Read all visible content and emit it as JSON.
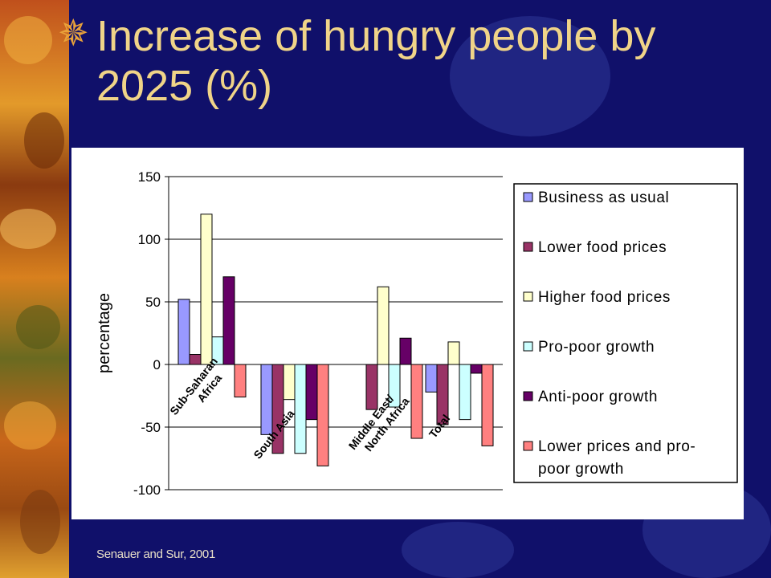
{
  "slide": {
    "title": "Increase of hungry people by 2025 (%)",
    "source": "Senauer and Sur, 2001"
  },
  "chart_data": {
    "type": "bar",
    "title": "",
    "xlabel": "",
    "ylabel": "percentage",
    "ylim": [
      -100,
      150
    ],
    "yticks": [
      150,
      100,
      50,
      0,
      -50,
      -100
    ],
    "grid": true,
    "legend": "right",
    "categories": [
      "Sub-Saharan Africa",
      "South Asia",
      "Middle East/ North Africa",
      "Total"
    ],
    "category_labels": [
      [
        "Sub-Saharan",
        "Africa"
      ],
      [
        "South Asia"
      ],
      [
        "Middle East/",
        "North Africa"
      ],
      [
        "Total"
      ]
    ],
    "series": [
      {
        "name": "Business as usual",
        "color": "#9999ff",
        "values": [
          52,
          -56,
          0,
          -22
        ]
      },
      {
        "name": "Lower food prices",
        "color": "#993366",
        "values": [
          8,
          -71,
          -36,
          -48
        ]
      },
      {
        "name": "Higher food prices",
        "color": "#ffffcc",
        "values": [
          120,
          -28,
          62,
          18
        ]
      },
      {
        "name": "Pro-poor growth",
        "color": "#ccffff",
        "values": [
          22,
          -71,
          -34,
          -44
        ]
      },
      {
        "name": "Anti-poor growth",
        "color": "#660066",
        "values": [
          70,
          -44,
          21,
          -7
        ]
      },
      {
        "name": "Lower prices and pro-poor growth",
        "color": "#ff8080",
        "values": [
          -26,
          -81,
          -59,
          -65
        ]
      }
    ],
    "legend_lines": [
      [
        "Business as usual"
      ],
      [
        "Lower food prices"
      ],
      [
        "Higher food prices"
      ],
      [
        "Pro-poor growth"
      ],
      [
        "Anti-poor growth"
      ],
      [
        "Lower prices and pro-",
        "poor growth"
      ]
    ]
  }
}
